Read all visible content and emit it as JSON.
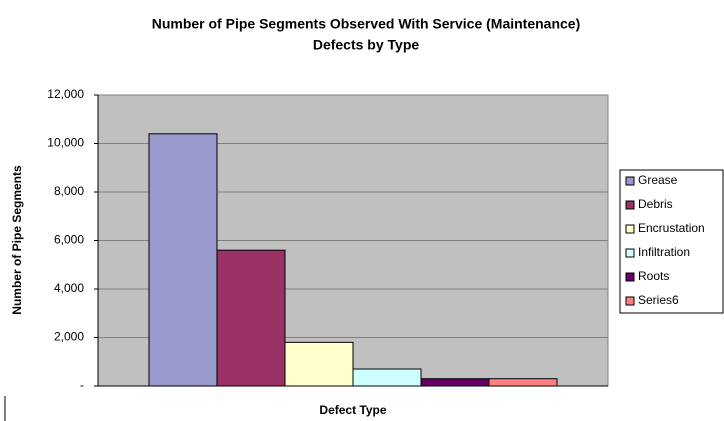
{
  "chart_data": {
    "type": "bar",
    "title": [
      "Number of Pipe Segments Observed With Service (Maintenance)",
      "Defects by Type"
    ],
    "x_label": "Defect Type",
    "y_label": "Number of Pipe Segments",
    "categories": [
      null
    ],
    "series": [
      {
        "name": "Grease",
        "color": "#9999cc",
        "values": [
          10400
        ]
      },
      {
        "name": "Debris",
        "color": "#993366",
        "values": [
          5600
        ]
      },
      {
        "name": "Encrustation",
        "color": "#ffffcc",
        "values": [
          1800
        ]
      },
      {
        "name": "Infiltration",
        "color": "#ccffff",
        "values": [
          700
        ]
      },
      {
        "name": "Roots",
        "color": "#660066",
        "values": [
          300
        ]
      },
      {
        "name": "Series6",
        "color": "#ff8080",
        "values": [
          300
        ]
      }
    ],
    "ylim": [
      0,
      12000
    ],
    "yticks": [
      {
        "value": 0,
        "label": "-"
      },
      {
        "value": 2000,
        "label": "2,000"
      },
      {
        "value": 4000,
        "label": "4,000"
      },
      {
        "value": 6000,
        "label": "6,000"
      },
      {
        "value": 8000,
        "label": "8,000"
      },
      {
        "value": 10000,
        "label": "10,000"
      },
      {
        "value": 12000,
        "label": "12,000"
      }
    ],
    "grid": true,
    "legend": "right"
  }
}
